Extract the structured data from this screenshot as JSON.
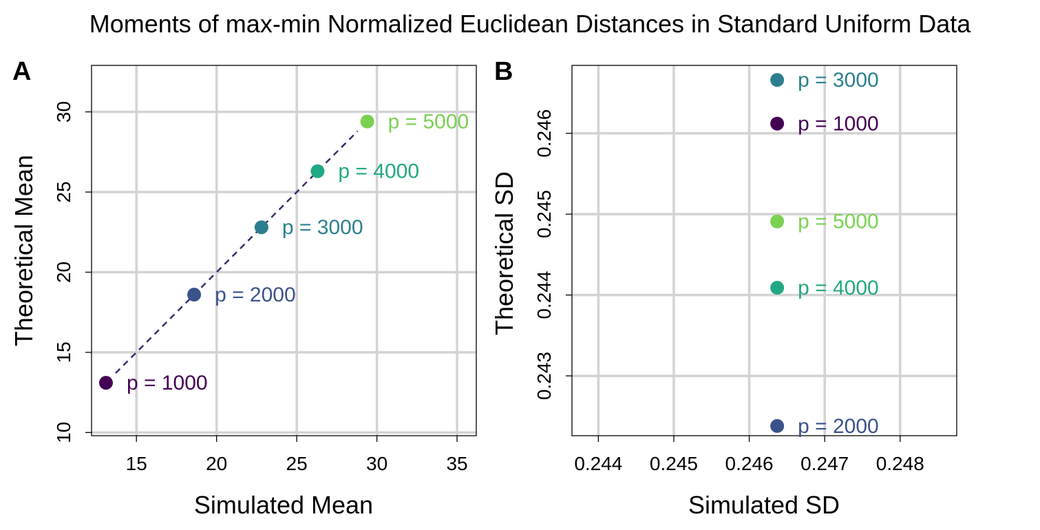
{
  "title": "Moments of max-min Normalized Euclidean Distances in Standard Uniform Data",
  "chart_data": [
    {
      "type": "scatter",
      "panel_label": "A",
      "xlabel": "Simulated Mean",
      "ylabel": "Theoretical Mean",
      "xlim": [
        12.2,
        36.2
      ],
      "ylim": [
        9.8,
        32.9
      ],
      "xticks": [
        15,
        20,
        25,
        30,
        35
      ],
      "xtick_labels": [
        "15",
        "20",
        "25",
        "30",
        "35"
      ],
      "yticks": [
        10,
        15,
        20,
        25,
        30
      ],
      "ytick_labels": [
        "10",
        "15",
        "20",
        "25",
        "30"
      ],
      "grid": true,
      "reference_line": "dashed y = x",
      "points": [
        {
          "label": "p = 1000",
          "x": 13.1,
          "y": 13.1,
          "color": "#440154"
        },
        {
          "label": "p = 2000",
          "x": 18.6,
          "y": 18.6,
          "color": "#3B528B"
        },
        {
          "label": "p = 3000",
          "x": 22.8,
          "y": 22.8,
          "color": "#2C7F8E"
        },
        {
          "label": "p = 4000",
          "x": 26.3,
          "y": 26.3,
          "color": "#22A884"
        },
        {
          "label": "p = 5000",
          "x": 29.4,
          "y": 29.4,
          "color": "#7AD151"
        }
      ]
    },
    {
      "type": "scatter",
      "panel_label": "B",
      "xlabel": "Simulated SD",
      "ylabel": "Theoretical SD",
      "xlim": [
        0.24365,
        0.24875
      ],
      "ylim": [
        0.24226,
        0.24684
      ],
      "xticks": [
        0.244,
        0.245,
        0.246,
        0.247,
        0.248
      ],
      "xtick_labels": [
        "0.244",
        "0.245",
        "0.246",
        "0.247",
        "0.248"
      ],
      "yticks": [
        0.243,
        0.244,
        0.245,
        0.246
      ],
      "ytick_labels": [
        "0.243",
        "0.244",
        "0.245",
        "0.246"
      ],
      "grid": true,
      "points": [
        {
          "label": "p = 3000",
          "x": 0.24637,
          "y": 0.24666,
          "color": "#2C7F8E"
        },
        {
          "label": "p = 1000",
          "x": 0.24637,
          "y": 0.24612,
          "color": "#440154"
        },
        {
          "label": "p = 5000",
          "x": 0.24637,
          "y": 0.24491,
          "color": "#7AD151"
        },
        {
          "label": "p = 4000",
          "x": 0.24637,
          "y": 0.24409,
          "color": "#22A884"
        },
        {
          "label": "p = 2000",
          "x": 0.24637,
          "y": 0.24238,
          "color": "#3B528B"
        }
      ]
    }
  ]
}
